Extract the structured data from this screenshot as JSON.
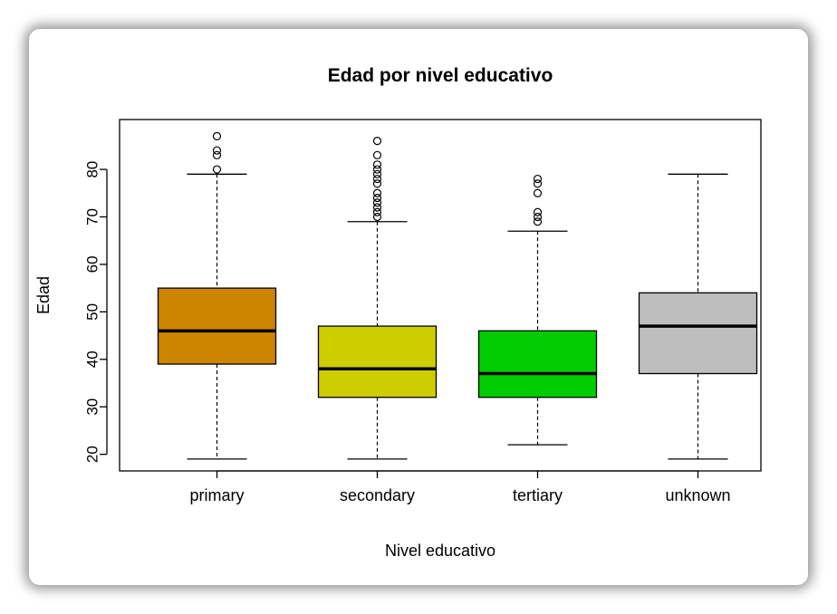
{
  "chart_data": {
    "type": "boxplot",
    "title": "Edad por nivel educativo",
    "xlabel": "Nivel educativo",
    "ylabel": "Edad",
    "ylim": [
      16.5,
      90.5
    ],
    "yticks": [
      20,
      30,
      40,
      50,
      60,
      70,
      80
    ],
    "grid": false,
    "categories": [
      "primary",
      "secondary",
      "tertiary",
      "unknown"
    ],
    "boxes": [
      {
        "category": "primary",
        "color": "#CD8500",
        "whisker_low": 19,
        "q1": 39,
        "median": 46,
        "q3": 55,
        "whisker_high": 79,
        "outliers": [
          80,
          83,
          84,
          87
        ]
      },
      {
        "category": "secondary",
        "color": "#CDCD00",
        "whisker_low": 19,
        "q1": 32,
        "median": 38,
        "q3": 47,
        "whisker_high": 69,
        "outliers": [
          70,
          71,
          72,
          73,
          74,
          75,
          77,
          78,
          79,
          80,
          81,
          83,
          86
        ]
      },
      {
        "category": "tertiary",
        "color": "#00CD00",
        "whisker_low": 22,
        "q1": 32,
        "median": 37,
        "q3": 46,
        "whisker_high": 67,
        "outliers": [
          69,
          70,
          71,
          75,
          77,
          78
        ]
      },
      {
        "category": "unknown",
        "color": "#BEBEBE",
        "whisker_low": 19,
        "q1": 37,
        "median": 47,
        "q3": 54,
        "whisker_high": 79,
        "outliers": []
      }
    ]
  }
}
